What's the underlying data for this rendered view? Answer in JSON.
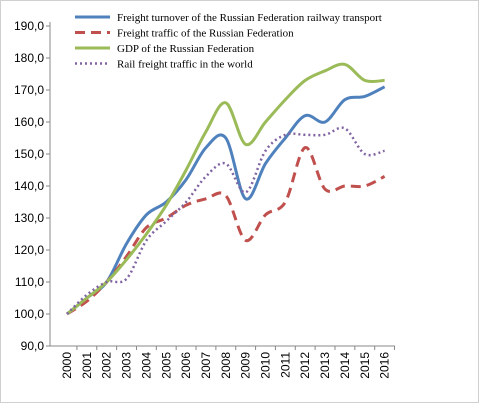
{
  "chart_data": {
    "type": "line",
    "categories": [
      "2000",
      "2001",
      "2002",
      "2003",
      "2004",
      "2005",
      "2006",
      "2007",
      "2008",
      "2009",
      "2010",
      "2011",
      "2012",
      "2013",
      "2014",
      "2015",
      "2016"
    ],
    "series": [
      {
        "name": "Freight turnover of the Russian Federation railway transport",
        "color": "#4f81bd",
        "dash": "solid",
        "values": [
          100,
          105,
          110,
          122,
          131,
          135,
          142,
          152,
          155,
          136,
          147,
          155,
          162,
          160,
          167,
          168,
          171
        ]
      },
      {
        "name": "Freight traffic of the Russian Federation",
        "color": "#c0504d",
        "dash": "dashed",
        "values": [
          100,
          104,
          110,
          118,
          127,
          130,
          134,
          136,
          137,
          123,
          131,
          135,
          152,
          139,
          140,
          140,
          143
        ]
      },
      {
        "name": "GDP of the Russian Federation",
        "color": "#9bbb59",
        "dash": "solid",
        "values": [
          100,
          105,
          110,
          117,
          125,
          134,
          145,
          157,
          166,
          153,
          160,
          167,
          173,
          176,
          178,
          173,
          173
        ]
      },
      {
        "name": "Rail freight traffic in the world",
        "color": "#8064a2",
        "dash": "dotted",
        "values": [
          100,
          106,
          110,
          111,
          123,
          129,
          135,
          143,
          147,
          138,
          151,
          156,
          156,
          156,
          158,
          150,
          151
        ]
      }
    ],
    "ylim": [
      90,
      190
    ],
    "yticks": [
      {
        "value": 90,
        "label": "90,0"
      },
      {
        "value": 100,
        "label": "100,0"
      },
      {
        "value": 110,
        "label": "110,0"
      },
      {
        "value": 120,
        "label": "120,0"
      },
      {
        "value": 130,
        "label": "130,0"
      },
      {
        "value": 140,
        "label": "140,0"
      },
      {
        "value": 150,
        "label": "150,0"
      },
      {
        "value": 160,
        "label": "160,0"
      },
      {
        "value": 170,
        "label": "170,0"
      },
      {
        "value": 180,
        "label": "180,0"
      },
      {
        "value": 190,
        "label": "190,0"
      }
    ],
    "legend": "upper left"
  }
}
